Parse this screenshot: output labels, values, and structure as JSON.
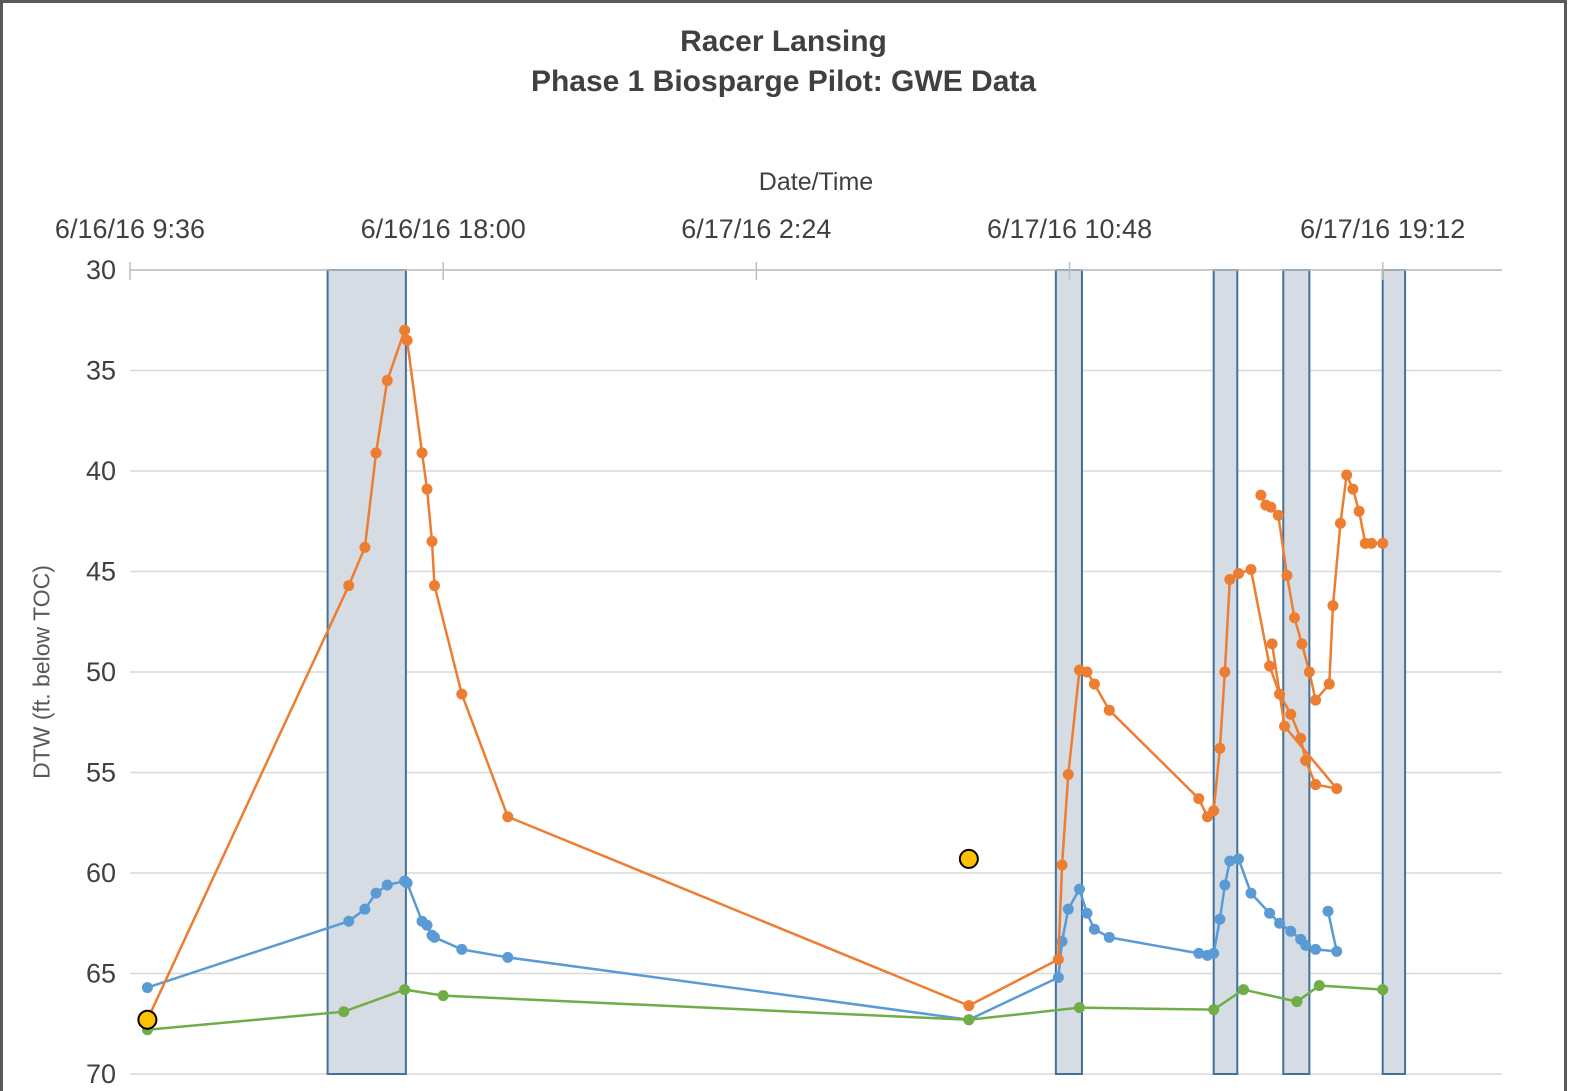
{
  "chart_data": {
    "type": "line",
    "title": "Racer Lansing",
    "subtitle": "Phase 1 Biosparge Pilot: GWE Data",
    "xlabel": "Date/Time",
    "ylabel": "DTW (ft. below TOC)",
    "x_axis_position": "top",
    "y_inverted": true,
    "ylim": [
      30,
      70
    ],
    "y_ticks": [
      30,
      35,
      40,
      45,
      50,
      55,
      60,
      65,
      70
    ],
    "x_ticks": [
      {
        "x": "2016-06-16 09:36",
        "label": "6/16/16 9:36"
      },
      {
        "x": "2016-06-16 18:00",
        "label": "6/16/16 18:00"
      },
      {
        "x": "2016-06-17 02:24",
        "label": "6/17/16 2:24"
      },
      {
        "x": "2016-06-17 10:48",
        "label": "6/17/16 10:48"
      },
      {
        "x": "2016-06-17 19:12",
        "label": "6/17/16 19:12"
      }
    ],
    "xlim": [
      "2016-06-16 09:36",
      "2016-06-17 22:24"
    ],
    "grid": "horizontal",
    "sparge_periods": [
      [
        "2016-06-16 14:54",
        "2016-06-16 17:00"
      ],
      [
        "2016-06-17 10:26",
        "2016-06-17 11:08"
      ],
      [
        "2016-06-17 14:40",
        "2016-06-17 15:18"
      ],
      [
        "2016-06-17 16:32",
        "2016-06-17 17:14"
      ],
      [
        "2016-06-17 19:12",
        "2016-06-17 19:48"
      ]
    ],
    "colors": {
      "orange": "#ED7D31",
      "blue": "#5B9BD5",
      "green": "#70AD47",
      "marker": "#FFC000",
      "band_fill": "#D6DCE4",
      "band_edge": "#41719C"
    },
    "series": [
      {
        "color": "#ED7D31",
        "x": [
          "2016-06-16 10:04",
          "2016-06-16 15:28",
          "2016-06-16 15:54",
          "2016-06-16 16:12",
          "2016-06-16 16:30",
          "2016-06-16 16:58",
          "2016-06-16 17:02",
          "2016-06-16 17:26",
          "2016-06-16 17:34",
          "2016-06-16 17:42",
          "2016-06-16 17:46",
          "2016-06-16 18:30",
          "2016-06-16 19:44",
          "2016-06-17 08:06",
          "2016-06-17 10:30",
          "2016-06-17 10:36",
          "2016-06-17 10:46",
          "2016-06-17 11:04",
          "2016-06-17 11:16",
          "2016-06-17 11:28",
          "2016-06-17 11:52",
          "2016-06-17 14:16",
          "2016-06-17 14:30",
          "2016-06-17 14:40",
          "2016-06-17 14:50",
          "2016-06-17 14:58",
          "2016-06-17 15:06",
          "2016-06-17 15:20",
          "2016-06-17 15:40",
          "2016-06-17 16:10",
          "2016-06-17 16:26",
          "2016-06-17 16:44",
          "2016-06-17 17:00",
          "2016-06-17 17:08",
          "2016-06-17 17:24",
          "2016-06-17 17:58",
          "2016-06-17 16:34",
          "2016-06-17 16:14"
        ],
        "y": [
          67.3,
          45.7,
          43.8,
          39.1,
          35.5,
          33.0,
          33.5,
          39.1,
          40.9,
          43.5,
          45.7,
          51.1,
          57.2,
          66.6,
          64.3,
          59.6,
          55.1,
          49.9,
          50.0,
          50.6,
          51.9,
          56.3,
          57.2,
          56.9,
          53.8,
          50.0,
          45.4,
          45.1,
          44.9,
          49.7,
          51.1,
          52.1,
          53.3,
          54.4,
          55.6,
          55.8,
          52.7,
          48.6
        ]
      },
      {
        "color": "#5B9BD5",
        "x": [
          "2016-06-16 10:04",
          "2016-06-16 15:28",
          "2016-06-16 15:54",
          "2016-06-16 16:12",
          "2016-06-16 16:30",
          "2016-06-16 16:58",
          "2016-06-16 17:02",
          "2016-06-16 17:26",
          "2016-06-16 17:34",
          "2016-06-16 17:42",
          "2016-06-16 17:46",
          "2016-06-16 18:30",
          "2016-06-16 19:44",
          "2016-06-17 08:06",
          "2016-06-17 10:30",
          "2016-06-17 10:36",
          "2016-06-17 10:46",
          "2016-06-17 11:04",
          "2016-06-17 11:16",
          "2016-06-17 11:28",
          "2016-06-17 11:52",
          "2016-06-17 14:16",
          "2016-06-17 14:30",
          "2016-06-17 14:40",
          "2016-06-17 14:50",
          "2016-06-17 14:58",
          "2016-06-17 15:06",
          "2016-06-17 15:20",
          "2016-06-17 15:40",
          "2016-06-17 16:10",
          "2016-06-17 16:26",
          "2016-06-17 16:44",
          "2016-06-17 17:00",
          "2016-06-17 17:08",
          "2016-06-17 17:24",
          "2016-06-17 17:58",
          "2016-06-17 17:44"
        ],
        "y": [
          65.7,
          62.4,
          61.8,
          61.0,
          60.6,
          60.4,
          60.5,
          62.4,
          62.6,
          63.1,
          63.2,
          63.8,
          64.2,
          67.3,
          65.2,
          63.4,
          61.8,
          60.8,
          62.0,
          62.8,
          63.2,
          64.0,
          64.1,
          64.0,
          62.3,
          60.6,
          59.4,
          59.3,
          61.0,
          62.0,
          62.5,
          62.9,
          63.3,
          63.6,
          63.8,
          63.9,
          61.9
        ]
      },
      {
        "color": "#70AD47",
        "x": [
          "2016-06-16 10:04",
          "2016-06-16 15:20",
          "2016-06-16 16:58",
          "2016-06-16 18:00",
          "2016-06-17 08:06",
          "2016-06-17 11:04",
          "2016-06-17 14:40",
          "2016-06-17 15:28",
          "2016-06-17 16:54",
          "2016-06-17 17:30",
          "2016-06-17 19:12"
        ],
        "y": [
          67.8,
          66.9,
          65.8,
          66.1,
          67.3,
          66.7,
          66.8,
          65.8,
          66.4,
          65.6,
          65.8
        ]
      }
    ],
    "extra_series": [
      {
        "name": "orange-tail",
        "color": "#ED7D31",
        "x": [
          "2016-06-17 15:56",
          "2016-06-17 16:04",
          "2016-06-17 16:12",
          "2016-06-17 16:24",
          "2016-06-17 16:38",
          "2016-06-17 16:50",
          "2016-06-17 17:02",
          "2016-06-17 17:14",
          "2016-06-17 17:24",
          "2016-06-17 17:46",
          "2016-06-17 17:52",
          "2016-06-17 18:04",
          "2016-06-17 18:14",
          "2016-06-17 18:24",
          "2016-06-17 18:34",
          "2016-06-17 18:44",
          "2016-06-17 18:54",
          "2016-06-17 19:12"
        ],
        "y": [
          41.2,
          41.7,
          41.8,
          42.2,
          45.2,
          47.3,
          48.6,
          50.0,
          51.4,
          50.6,
          46.7,
          42.6,
          40.2,
          40.9,
          42.0,
          43.6,
          43.6,
          43.6
        ]
      }
    ],
    "markers": [
      {
        "x": "2016-06-16 10:04",
        "y": 67.3
      },
      {
        "x": "2016-06-17 08:06",
        "y": 59.3
      }
    ]
  }
}
